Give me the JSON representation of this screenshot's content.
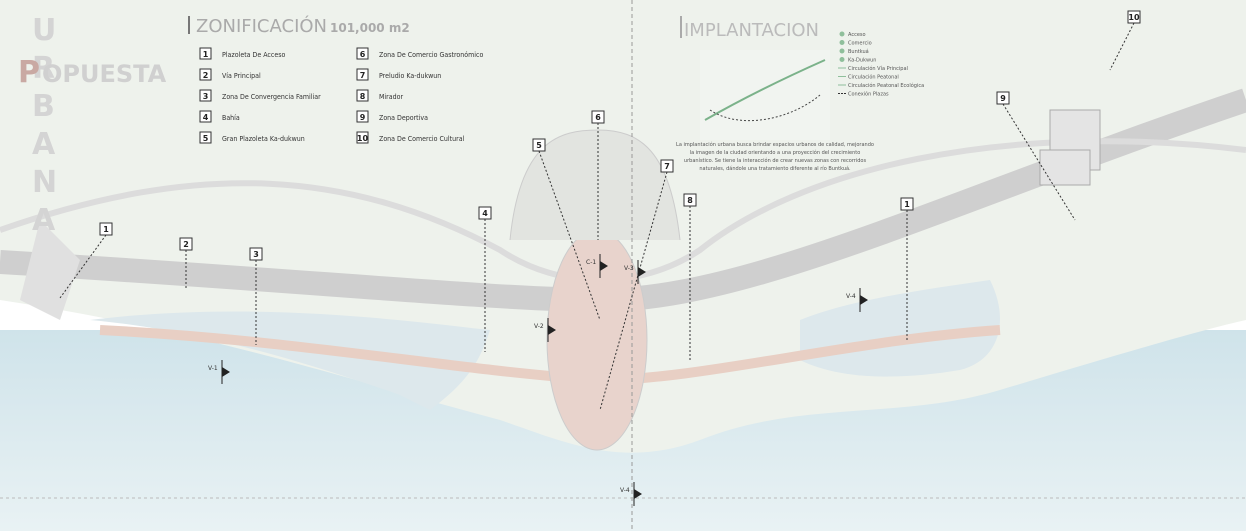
{
  "header": {
    "letters": [
      "U",
      "R",
      "B",
      "A",
      "N",
      "A"
    ],
    "propuesta_initial": "P",
    "propuesta_rest": "OPUESTA"
  },
  "zonificacion": {
    "title": "ZONIFICACIÓN",
    "area": "101,000 m2",
    "items": [
      {
        "number": "1",
        "label": "Plazoleta De Acceso"
      },
      {
        "number": "2",
        "label": "Vía Principal"
      },
      {
        "number": "3",
        "label": "Zona De Convergencia Familiar"
      },
      {
        "number": "4",
        "label": "Bahía"
      },
      {
        "number": "5",
        "label": "Gran Plazoleta Ka-dukwun"
      },
      {
        "number": "6",
        "label": "Zona De Comercio Gastronómico"
      },
      {
        "number": "7",
        "label": "Preludio Ka-dukwun"
      },
      {
        "number": "8",
        "label": "Mirador"
      },
      {
        "number": "9",
        "label": "Zona Deportiva"
      },
      {
        "number": "10",
        "label": "Zona De Comercio Cultural"
      }
    ]
  },
  "implantacion": {
    "title": "IMPLANTACION",
    "legend": [
      "Acceso",
      "Comercio",
      "Buntkuá",
      "Ka-Dukwun",
      "Circulación Vía Principal",
      "Circulación Peatonal",
      "Circulación Peatonal Ecológica",
      "Conexión Plazas"
    ],
    "description": [
      "La implantación urbana busca brindar espacios urbanos de calidad, mejorando",
      "la imagen de la ciudad orientando a una proyección del crecimiento",
      "urbanístico. Se tiene la interacción de crear nuevas zonas con recorridos",
      "naturales, dándole una tratamiento diferente al río Buntkuá."
    ]
  },
  "markers": [
    "1",
    "2",
    "3",
    "4",
    "5",
    "6",
    "7",
    "8",
    "9",
    "10",
    "1"
  ],
  "sections": [
    "V-1",
    "V-2",
    "V-3",
    "C-1",
    "V-4",
    "V-4"
  ]
}
